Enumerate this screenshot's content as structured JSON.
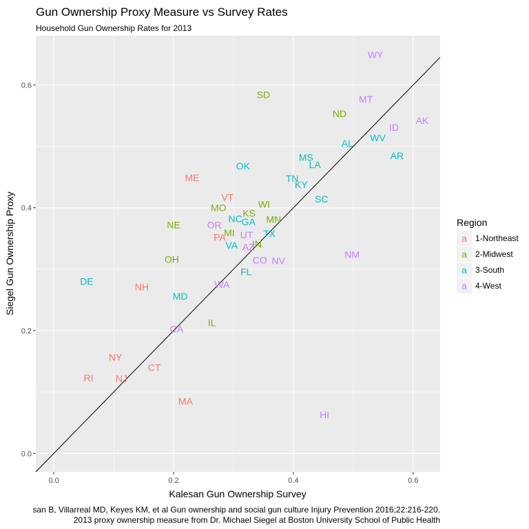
{
  "chart_data": {
    "type": "scatter",
    "title": "Gun Ownership Proxy Measure vs Survey Rates",
    "subtitle": "Household Gun Ownership Rates for 2013",
    "xlabel": "Kalesan Gun Ownership Survey",
    "ylabel": "Siegel Gun Ownership Proxy",
    "xlim": [
      -0.03,
      0.645
    ],
    "ylim": [
      -0.03,
      0.68
    ],
    "x_ticks": [
      0.0,
      0.2,
      0.4,
      0.6
    ],
    "x_tick_labels": [
      "0.0",
      "0.2",
      "0.4",
      "0.6"
    ],
    "y_ticks": [
      0.0,
      0.2,
      0.4,
      0.6
    ],
    "y_tick_labels": [
      "0.0",
      "0.2",
      "0.4",
      "0.6"
    ],
    "reference_line": {
      "slope": 1,
      "intercept": 0
    },
    "grid": true,
    "legend": {
      "title": "Region",
      "position": "right",
      "key_glyph": "a",
      "entries": [
        {
          "name": "1-Northeast",
          "color": "#F8766D"
        },
        {
          "name": "2-Midwest",
          "color": "#7CAE00"
        },
        {
          "name": "3-South",
          "color": "#00BFC4"
        },
        {
          "name": "4-West",
          "color": "#C77CFF"
        }
      ]
    },
    "caption": [
      "san B, Villarreal MD, Keyes KM, et al Gun ownership and social gun culture Injury Prevention 2016;22:216-220.",
      "2013 proxy ownership measure from Dr. Michael Siegel at Boston University School of Public Health"
    ],
    "points": [
      {
        "label": "WY",
        "x": 0.537,
        "y": 0.649,
        "region": "4-West"
      },
      {
        "label": "SD",
        "x": 0.35,
        "y": 0.584,
        "region": "2-Midwest"
      },
      {
        "label": "MT",
        "x": 0.521,
        "y": 0.577,
        "region": "4-West"
      },
      {
        "label": "ND",
        "x": 0.477,
        "y": 0.553,
        "region": "2-Midwest"
      },
      {
        "label": "AK",
        "x": 0.615,
        "y": 0.542,
        "region": "4-West"
      },
      {
        "label": "ID",
        "x": 0.568,
        "y": 0.531,
        "region": "4-West"
      },
      {
        "label": "WV",
        "x": 0.541,
        "y": 0.514,
        "region": "3-South"
      },
      {
        "label": "AL",
        "x": 0.49,
        "y": 0.505,
        "region": "3-South"
      },
      {
        "label": "AR",
        "x": 0.573,
        "y": 0.485,
        "region": "3-South"
      },
      {
        "label": "MS",
        "x": 0.421,
        "y": 0.482,
        "region": "3-South"
      },
      {
        "label": "LA",
        "x": 0.436,
        "y": 0.47,
        "region": "3-South"
      },
      {
        "label": "OK",
        "x": 0.316,
        "y": 0.468,
        "region": "3-South"
      },
      {
        "label": "ME",
        "x": 0.231,
        "y": 0.449,
        "region": "1-Northeast"
      },
      {
        "label": "TN",
        "x": 0.398,
        "y": 0.448,
        "region": "3-South"
      },
      {
        "label": "KY",
        "x": 0.413,
        "y": 0.438,
        "region": "3-South"
      },
      {
        "label": "SC",
        "x": 0.447,
        "y": 0.414,
        "region": "3-South"
      },
      {
        "label": "VT",
        "x": 0.29,
        "y": 0.417,
        "region": "1-Northeast"
      },
      {
        "label": "WI",
        "x": 0.351,
        "y": 0.406,
        "region": "2-Midwest"
      },
      {
        "label": "MO",
        "x": 0.275,
        "y": 0.4,
        "region": "2-Midwest"
      },
      {
        "label": "KS",
        "x": 0.326,
        "y": 0.391,
        "region": "2-Midwest"
      },
      {
        "label": "NC",
        "x": 0.303,
        "y": 0.382,
        "region": "3-South"
      },
      {
        "label": "MN",
        "x": 0.367,
        "y": 0.381,
        "region": "2-Midwest"
      },
      {
        "label": "GA",
        "x": 0.325,
        "y": 0.377,
        "region": "3-South"
      },
      {
        "label": "NE",
        "x": 0.2,
        "y": 0.372,
        "region": "2-Midwest"
      },
      {
        "label": "OR",
        "x": 0.268,
        "y": 0.372,
        "region": "4-West"
      },
      {
        "label": "MI",
        "x": 0.293,
        "y": 0.359,
        "region": "2-Midwest"
      },
      {
        "label": "TX",
        "x": 0.36,
        "y": 0.358,
        "region": "3-South"
      },
      {
        "label": "UT",
        "x": 0.322,
        "y": 0.356,
        "region": "4-West"
      },
      {
        "label": "PA",
        "x": 0.277,
        "y": 0.352,
        "region": "1-Northeast"
      },
      {
        "label": "IN",
        "x": 0.339,
        "y": 0.341,
        "region": "2-Midwest"
      },
      {
        "label": "VA",
        "x": 0.297,
        "y": 0.339,
        "region": "3-South"
      },
      {
        "label": "AZ",
        "x": 0.325,
        "y": 0.336,
        "region": "4-West"
      },
      {
        "label": "NM",
        "x": 0.498,
        "y": 0.324,
        "region": "4-West"
      },
      {
        "label": "OH",
        "x": 0.197,
        "y": 0.316,
        "region": "2-Midwest"
      },
      {
        "label": "CO",
        "x": 0.344,
        "y": 0.315,
        "region": "4-West"
      },
      {
        "label": "NV",
        "x": 0.375,
        "y": 0.314,
        "region": "4-West"
      },
      {
        "label": "FL",
        "x": 0.321,
        "y": 0.296,
        "region": "3-South"
      },
      {
        "label": "DE",
        "x": 0.055,
        "y": 0.28,
        "region": "3-South"
      },
      {
        "label": "WA",
        "x": 0.281,
        "y": 0.275,
        "region": "4-West"
      },
      {
        "label": "NH",
        "x": 0.147,
        "y": 0.271,
        "region": "1-Northeast"
      },
      {
        "label": "MD",
        "x": 0.211,
        "y": 0.256,
        "region": "3-South"
      },
      {
        "label": "IL",
        "x": 0.264,
        "y": 0.213,
        "region": "2-Midwest"
      },
      {
        "label": "CA",
        "x": 0.205,
        "y": 0.203,
        "region": "4-West"
      },
      {
        "label": "NY",
        "x": 0.103,
        "y": 0.157,
        "region": "1-Northeast"
      },
      {
        "label": "CT",
        "x": 0.168,
        "y": 0.14,
        "region": "1-Northeast"
      },
      {
        "label": "RI",
        "x": 0.058,
        "y": 0.123,
        "region": "1-Northeast"
      },
      {
        "label": "NJ",
        "x": 0.113,
        "y": 0.122,
        "region": "1-Northeast"
      },
      {
        "label": "MA",
        "x": 0.22,
        "y": 0.085,
        "region": "1-Northeast"
      },
      {
        "label": "HI",
        "x": 0.452,
        "y": 0.063,
        "region": "4-West"
      }
    ]
  }
}
